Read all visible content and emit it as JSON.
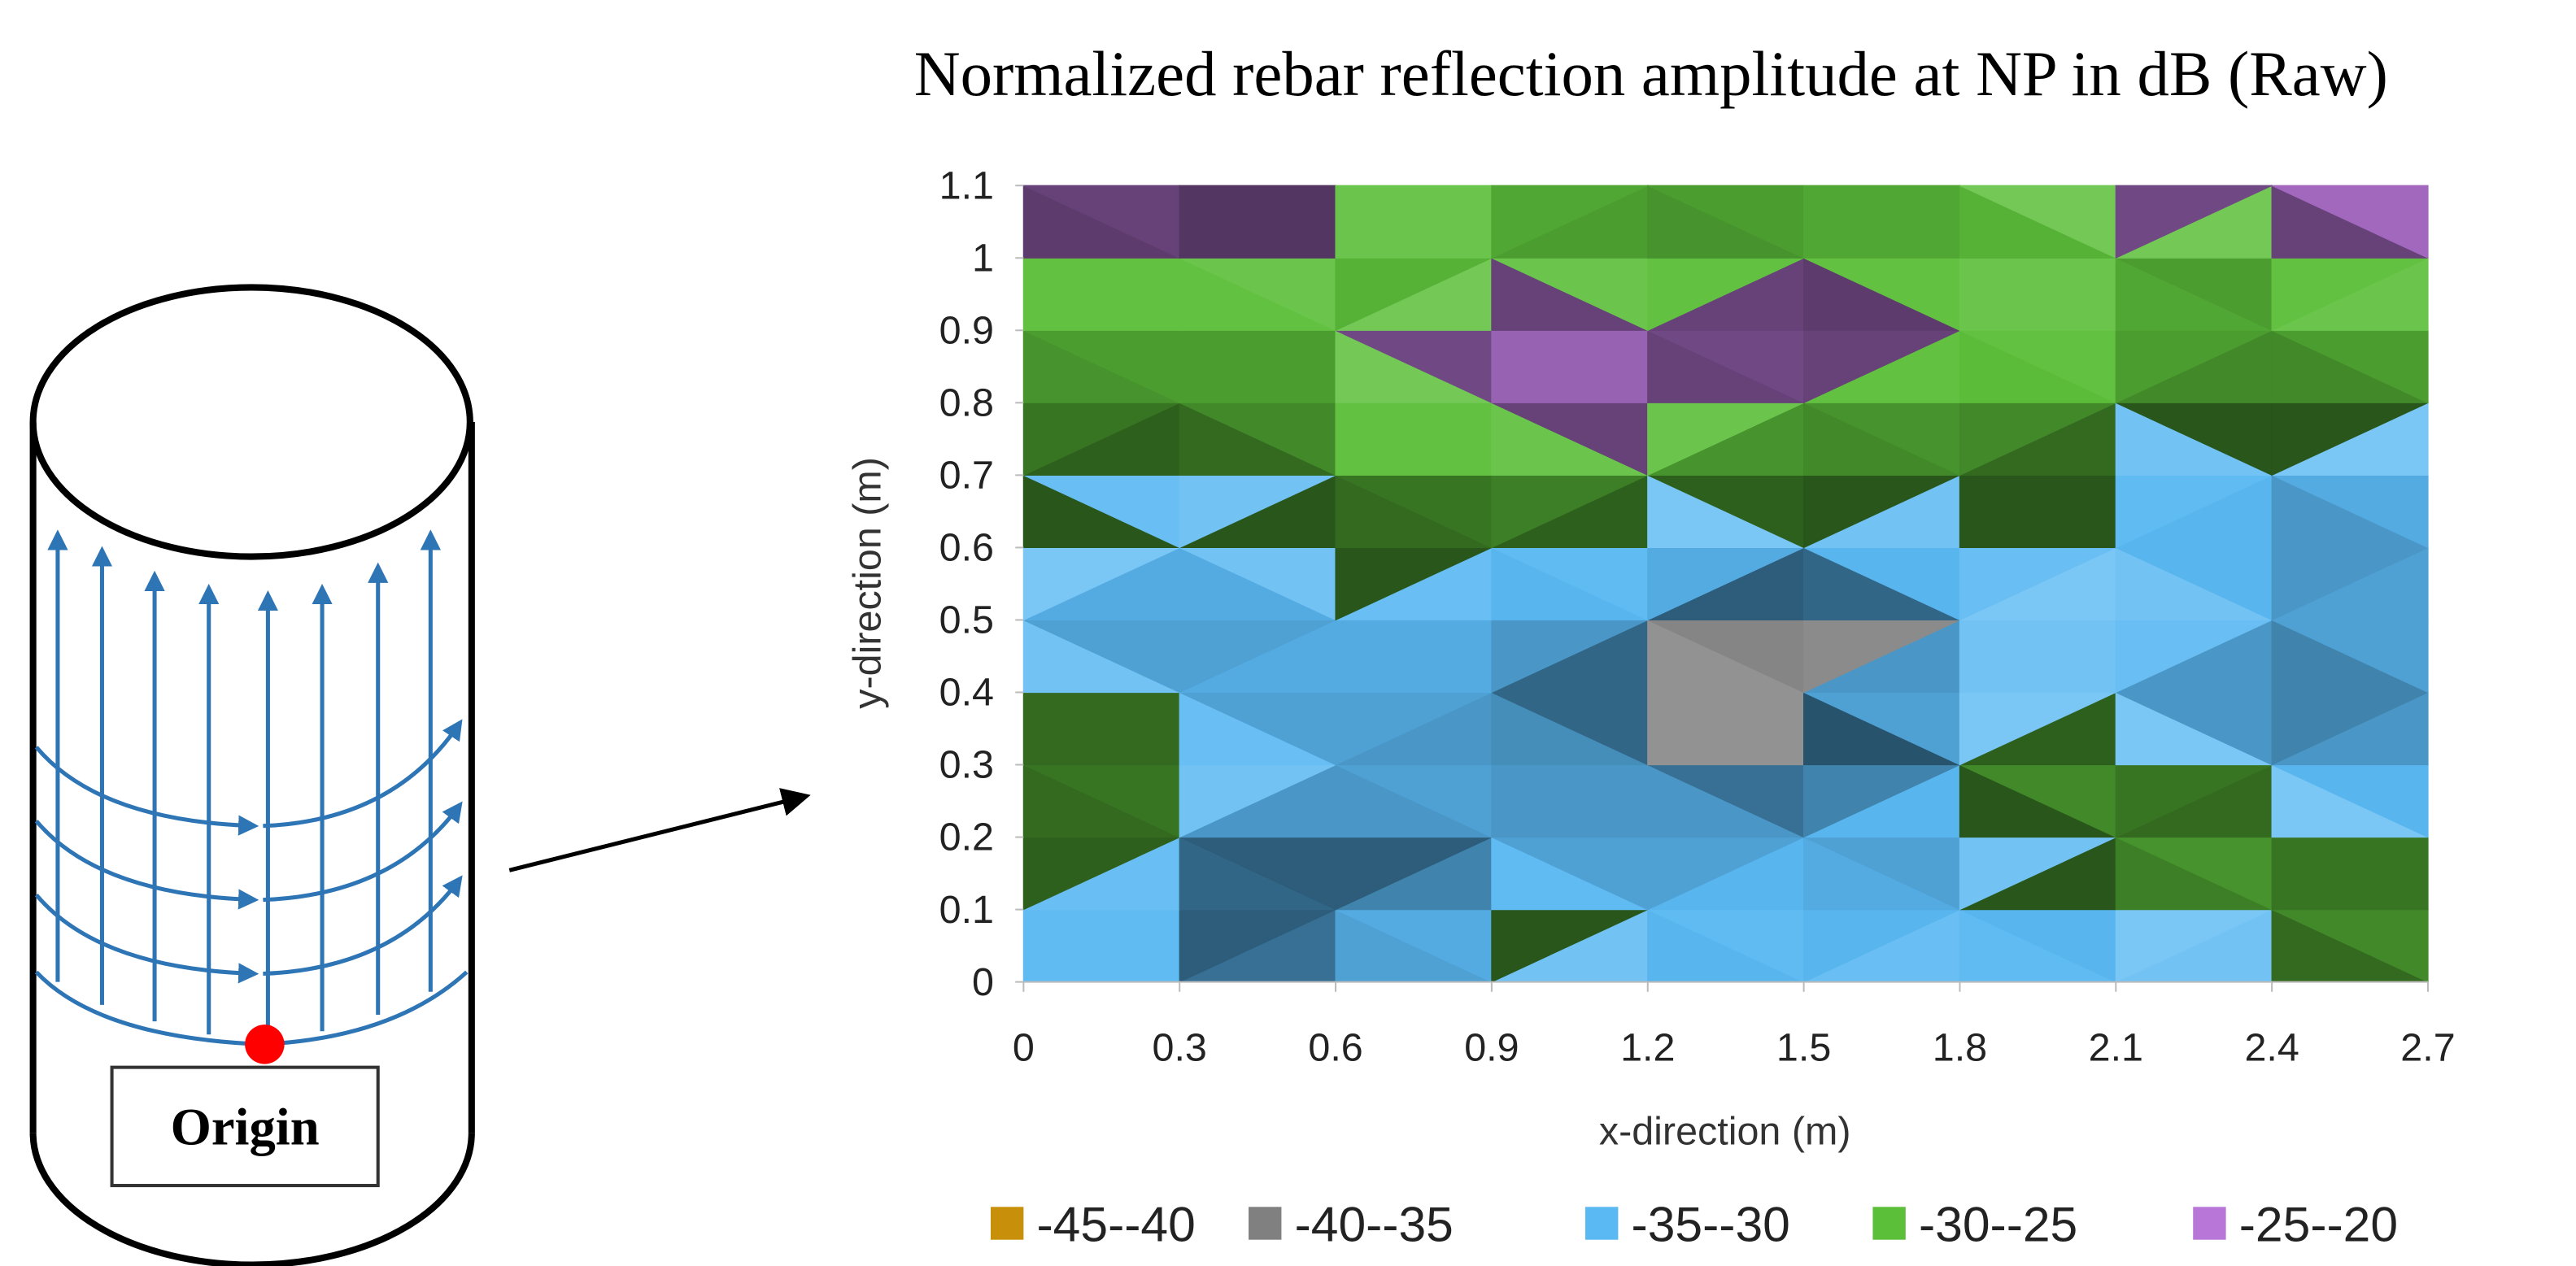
{
  "diagram": {
    "origin_label": "Origin"
  },
  "chart_data": {
    "type": "contour",
    "title": "Normalized rebar reflection amplitude at NP in dB (Raw)",
    "x_label": "x-direction (m)",
    "y_label": "y-direction (m)",
    "x": [
      0,
      0.3,
      0.6,
      0.9,
      1.2,
      1.5,
      1.8,
      2.1,
      2.4,
      2.7
    ],
    "y": [
      0,
      0.1,
      0.2,
      0.3,
      0.4,
      0.5,
      0.6,
      0.7,
      0.8,
      0.9,
      1,
      1.1
    ],
    "z": [
      [
        -33,
        -33,
        -31,
        -28,
        -32,
        -31,
        -29,
        -32,
        -31,
        -28
      ],
      [
        -28,
        -33,
        -38,
        -30,
        -32,
        -31,
        -33,
        -30,
        -29,
        -28
      ],
      [
        -29,
        -32,
        -34,
        -32,
        -33,
        -32,
        -32,
        -27,
        -28,
        -30
      ],
      [
        -27,
        -28,
        -32,
        -33,
        -33,
        -37,
        -31,
        -27,
        -33,
        -32
      ],
      [
        -28,
        -33,
        -32,
        -33,
        -37,
        -37,
        -29,
        -31,
        -34,
        -33
      ],
      [
        -31,
        -33,
        -31,
        -32,
        -33,
        -39,
        -32,
        -29,
        -33,
        -31
      ],
      [
        -28,
        -32,
        -29,
        -30,
        -31,
        -32,
        -31,
        -30,
        -32,
        -33
      ],
      [
        -30,
        -31,
        -29,
        -28,
        -28,
        -29,
        -29,
        -31,
        -33,
        -30
      ],
      [
        -29,
        -28,
        -28,
        -22,
        -23,
        -27,
        -28,
        -28,
        -29,
        -28
      ],
      [
        -27,
        -28,
        -27,
        -23,
        -23,
        -22,
        -24,
        -27,
        -28,
        -27
      ],
      [
        -28,
        -24,
        -27,
        -27,
        -28,
        -28,
        -27,
        -27,
        -28,
        -23
      ],
      [
        -22,
        -27,
        -24,
        -27,
        -28,
        -27,
        -27,
        -23,
        -22,
        -22
      ]
    ],
    "xlim": [
      0,
      2.7
    ],
    "ylim": [
      0,
      1.1
    ],
    "xticks": [
      0,
      0.3,
      0.6,
      0.9,
      1.2,
      1.5,
      1.8,
      2.1,
      2.4,
      2.7
    ],
    "yticks": [
      0,
      0.1,
      0.2,
      0.3,
      0.4,
      0.5,
      0.6,
      0.7,
      0.8,
      0.9,
      1,
      1.1
    ],
    "levels": [
      -45,
      -40,
      -35,
      -30,
      -25,
      -20
    ],
    "bands": [
      {
        "label": "-45--40",
        "color": "#c8900a"
      },
      {
        "label": "-40--35",
        "color": "#808080"
      },
      {
        "label": "-35--30",
        "color": "#5ab8f2"
      },
      {
        "label": "-30--25",
        "color": "#5cbf3a"
      },
      {
        "label": "-25--20",
        "color": "#b877d8"
      }
    ]
  }
}
